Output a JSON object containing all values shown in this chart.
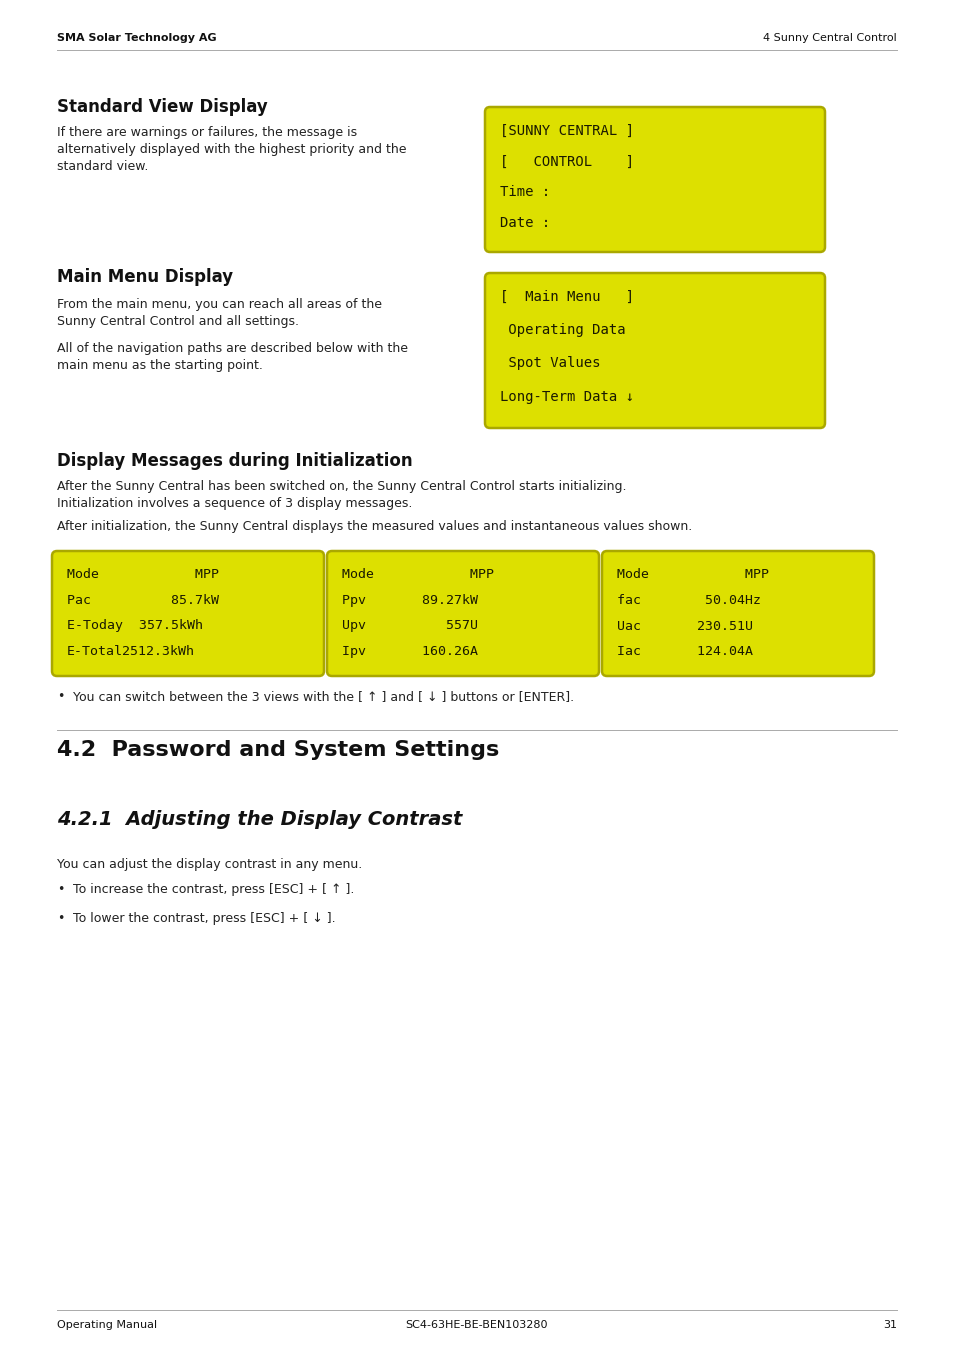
{
  "bg_color": "#ffffff",
  "header_left": "SMA Solar Technology AG",
  "header_right": "4 Sunny Central Control",
  "footer_left": "Operating Manual",
  "footer_right": "SC4-63HE-BE-BEN103280",
  "footer_page": "31",
  "section_h3_1": "Standard View Display",
  "section_h3_2": "Main Menu Display",
  "section_h3_3": "Display Messages during Initialization",
  "section_h2_1": "4.2  Password and System Settings",
  "section_h2_2": "4.2.1  Adjusting the Display Contrast",
  "body_color": "#222222",
  "yellow_bg": "#dde000",
  "yellow_border": "#aaa800",
  "mono_color": "#1a1a00",
  "box1_lines": [
    "[SUNNY CENTRAL ]",
    "[   CONTROL    ]",
    "Time :",
    "Date :"
  ],
  "box2_lines": [
    "[  Main Menu   ]",
    " Operating Data",
    " Spot Values",
    "Long-Term Data ↓"
  ],
  "box3_lines": [
    "Mode            MPP",
    "Pac          85.7kW",
    "E-Today  357.5kWh",
    "E-Total2512.3kWh"
  ],
  "box4_lines": [
    "Mode            MPP",
    "Ppv       89.27kW",
    "Upv          557U",
    "Ipv       160.26A"
  ],
  "box5_lines": [
    "Mode            MPP",
    "fac        50.04Hz",
    "Uac       230.51U",
    "Iac       124.04A"
  ],
  "para1_lines": [
    "If there are warnings or failures, the message is",
    "alternatively displayed with the highest priority and the",
    "standard view."
  ],
  "para2a_lines": [
    "From the main menu, you can reach all areas of the",
    "Sunny Central Control and all settings."
  ],
  "para2b_lines": [
    "All of the navigation paths are described below with the",
    "main menu as the starting point."
  ],
  "para3a_lines": [
    "After the Sunny Central has been switched on, the Sunny Central Control starts initializing.",
    "Initialization involves a sequence of 3 display messages."
  ],
  "para3b": "After initialization, the Sunny Central displays the measured values and instantaneous values shown.",
  "bullet1": "You can switch between the 3 views with the [ ↑ ] and [ ↓ ] buttons or [ENTER].",
  "para_421": "You can adjust the display contrast in any menu.",
  "bullet_421a": "To increase the contrast, press [ESC] + [ ↑ ].",
  "bullet_421b": "To lower the contrast, press [ESC] + [ ↓ ]."
}
